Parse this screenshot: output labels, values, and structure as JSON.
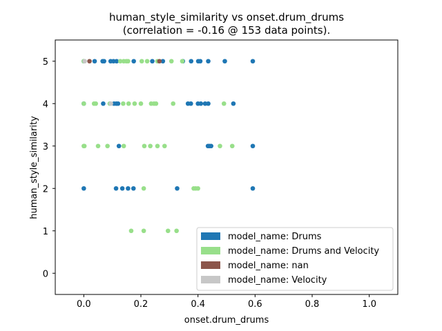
{
  "chart_data": {
    "type": "scatter",
    "title_line1": "human_style_similarity vs onset.drum_drums",
    "title_line2": "(correlation = -0.16 @ 153 data points).",
    "xlabel": "onset.drum_drums",
    "ylabel": "human_style_similarity",
    "xlim": [
      -0.1,
      1.1
    ],
    "ylim": [
      -0.5,
      5.5
    ],
    "xticks": [
      0.0,
      0.2,
      0.4,
      0.6,
      0.8,
      1.0
    ],
    "xtick_labels": [
      "0.0",
      "0.2",
      "0.4",
      "0.6",
      "0.8",
      "1.0"
    ],
    "yticks": [
      0,
      1,
      2,
      3,
      4,
      5
    ],
    "ytick_labels": [
      "0",
      "1",
      "2",
      "3",
      "4",
      "5"
    ],
    "grid": false,
    "legend_position": "lower-right",
    "series": [
      {
        "name": "model_name: Drums",
        "color": "#1f77b4",
        "points": [
          [
            0.0,
            5
          ],
          [
            0.038,
            5
          ],
          [
            0.066,
            5
          ],
          [
            0.071,
            5
          ],
          [
            0.094,
            5
          ],
          [
            0.104,
            5
          ],
          [
            0.115,
            5
          ],
          [
            0.175,
            5
          ],
          [
            0.24,
            5
          ],
          [
            0.277,
            5
          ],
          [
            0.347,
            5
          ],
          [
            0.376,
            5
          ],
          [
            0.401,
            5
          ],
          [
            0.408,
            5
          ],
          [
            0.436,
            5
          ],
          [
            0.494,
            5
          ],
          [
            0.592,
            5
          ],
          [
            0.0,
            4
          ],
          [
            0.068,
            4
          ],
          [
            0.106,
            4
          ],
          [
            0.114,
            4
          ],
          [
            0.12,
            4
          ],
          [
            0.365,
            4
          ],
          [
            0.375,
            4
          ],
          [
            0.4,
            4
          ],
          [
            0.41,
            4
          ],
          [
            0.425,
            4
          ],
          [
            0.436,
            4
          ],
          [
            0.524,
            4
          ],
          [
            0.123,
            3
          ],
          [
            0.435,
            3
          ],
          [
            0.44,
            3
          ],
          [
            0.446,
            3
          ],
          [
            0.592,
            3
          ],
          [
            0.0,
            2
          ],
          [
            0.113,
            2
          ],
          [
            0.135,
            2
          ],
          [
            0.155,
            2
          ],
          [
            0.174,
            2
          ],
          [
            0.327,
            2
          ],
          [
            0.592,
            2
          ]
        ]
      },
      {
        "name": "model_name: Drums and Velocity",
        "color": "#98df8a",
        "points": [
          [
            0.0,
            5
          ],
          [
            0.001,
            5
          ],
          [
            0.128,
            5
          ],
          [
            0.14,
            5
          ],
          [
            0.149,
            5
          ],
          [
            0.155,
            5
          ],
          [
            0.203,
            5
          ],
          [
            0.222,
            5
          ],
          [
            0.258,
            5
          ],
          [
            0.307,
            5
          ],
          [
            0.345,
            5
          ],
          [
            0.0,
            4
          ],
          [
            0.036,
            4
          ],
          [
            0.042,
            4
          ],
          [
            0.091,
            4
          ],
          [
            0.138,
            4
          ],
          [
            0.157,
            4
          ],
          [
            0.178,
            4
          ],
          [
            0.2,
            4
          ],
          [
            0.236,
            4
          ],
          [
            0.246,
            4
          ],
          [
            0.253,
            4
          ],
          [
            0.313,
            4
          ],
          [
            0.491,
            4
          ],
          [
            0.0,
            3
          ],
          [
            0.002,
            3
          ],
          [
            0.05,
            3
          ],
          [
            0.083,
            3
          ],
          [
            0.14,
            3
          ],
          [
            0.212,
            3
          ],
          [
            0.233,
            3
          ],
          [
            0.258,
            3
          ],
          [
            0.283,
            3
          ],
          [
            0.477,
            3
          ],
          [
            0.52,
            3
          ],
          [
            0.21,
            2
          ],
          [
            0.385,
            2
          ],
          [
            0.392,
            2
          ],
          [
            0.4,
            2
          ],
          [
            0.166,
            1
          ],
          [
            0.21,
            1
          ],
          [
            0.295,
            1
          ],
          [
            0.325,
            1
          ]
        ]
      },
      {
        "name": "model_name: nan",
        "color": "#8c564b",
        "points": [
          [
            0.02,
            5
          ],
          [
            0.265,
            5
          ]
        ]
      },
      {
        "name": "model_name: Velocity",
        "color": "#c7c7c7",
        "points": [
          [
            0.003,
            5
          ],
          [
            0.095,
            4
          ]
        ]
      }
    ]
  }
}
